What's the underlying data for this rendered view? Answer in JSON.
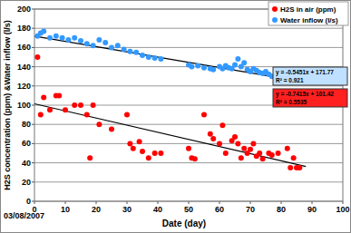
{
  "chart_data": {
    "type": "scatter",
    "x_label": "Date (day)",
    "y_label": "H2S concentration (ppm) &Water inflow (l/s)",
    "annotation": "03/08/2007",
    "xlim": [
      0,
      100
    ],
    "xticks": [
      0,
      10,
      20,
      30,
      40,
      50,
      60,
      70,
      80,
      90,
      100
    ],
    "ylim": [
      0,
      200
    ],
    "yticks": [
      0,
      20,
      40,
      60,
      80,
      100,
      120,
      140,
      160,
      180,
      200
    ],
    "grid": true,
    "legend": "top-right",
    "marker": "circle",
    "series": [
      {
        "name": "H2S in air (ppm)",
        "color": "#ff0000",
        "x": [
          1,
          2,
          3,
          5,
          7,
          8,
          10,
          13,
          15,
          17,
          18,
          19,
          21,
          25,
          30,
          31,
          32,
          34,
          35,
          37,
          39,
          41,
          50,
          51,
          52,
          55,
          57,
          58,
          60,
          61,
          62,
          64,
          65,
          66,
          67,
          68,
          69,
          70,
          71,
          72,
          73,
          74,
          76,
          77,
          79,
          82,
          83,
          84,
          85,
          86
        ],
        "values": [
          150,
          90,
          108,
          95,
          110,
          110,
          95,
          100,
          100,
          90,
          45,
          100,
          80,
          75,
          90,
          60,
          55,
          62,
          52,
          45,
          50,
          50,
          55,
          45,
          44,
          90,
          70,
          65,
          60,
          79,
          50,
          63,
          67,
          60,
          45,
          55,
          50,
          54,
          60,
          47,
          50,
          44,
          50,
          48,
          50,
          55,
          35,
          45,
          35,
          35
        ],
        "trendline": {
          "slope": -0.7415,
          "intercept": 101.42,
          "x": [
            0,
            88
          ],
          "label": "y = -0.7415x + 101.42",
          "r2_label": "R² = 0.5535"
        }
      },
      {
        "name": "Water inflow (l/s)",
        "color": "#3399ff",
        "x": [
          1,
          2,
          3,
          5,
          7,
          9,
          11,
          13,
          15,
          17,
          19,
          21,
          23,
          25,
          27,
          29,
          31,
          33,
          35,
          37,
          39,
          41,
          50,
          51,
          53,
          55,
          57,
          58,
          60,
          61,
          62,
          63,
          64,
          65,
          66,
          67,
          68,
          69,
          70,
          71,
          72,
          73,
          74,
          75,
          76,
          77
        ],
        "values": [
          172,
          175,
          177,
          170,
          172,
          170,
          168,
          170,
          167,
          164,
          162,
          168,
          165,
          160,
          162,
          158,
          156,
          155,
          152,
          150,
          149,
          148,
          142,
          140,
          141,
          139,
          138,
          137,
          140,
          138,
          141,
          139,
          138,
          142,
          148,
          140,
          144,
          137,
          135,
          138,
          136,
          134,
          133,
          135,
          132,
          130
        ],
        "trendline": {
          "slope": -0.5451,
          "intercept": 171.77,
          "x": [
            0,
            77
          ],
          "label": "y = -0.5451x + 171.77",
          "r2_label": "R² = 0.921"
        }
      }
    ]
  }
}
